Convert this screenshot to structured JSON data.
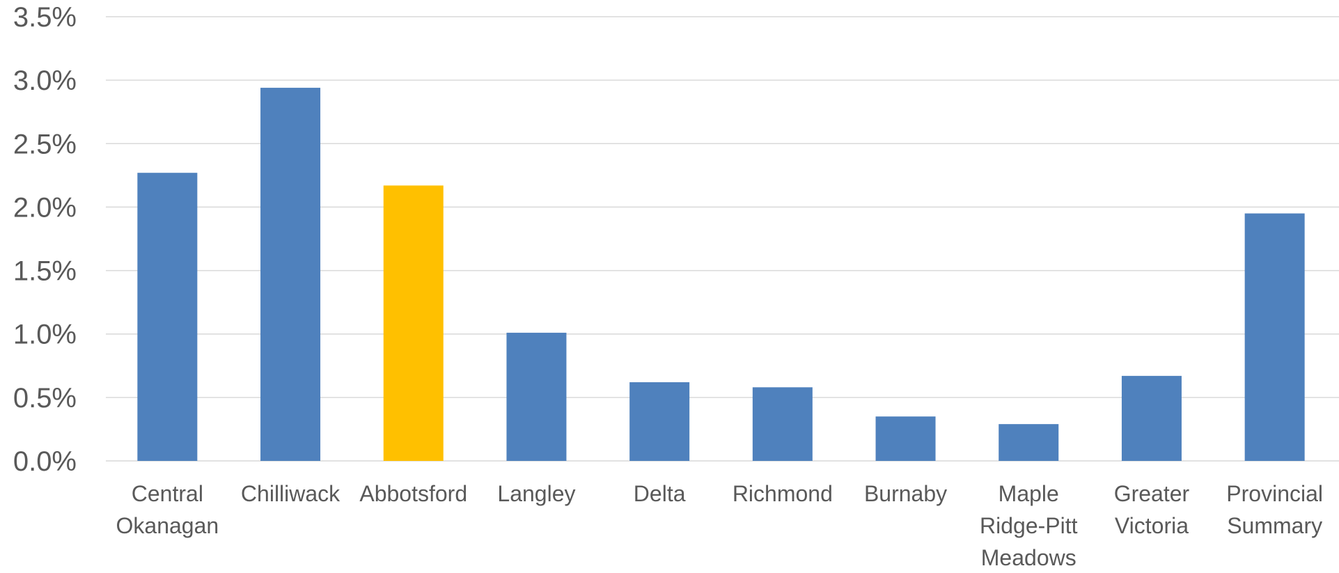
{
  "chart_data": {
    "type": "bar",
    "title": "",
    "xlabel": "",
    "ylabel": "",
    "ylim": [
      0,
      0.035
    ],
    "y_ticks": [
      "0.0%",
      "0.5%",
      "1.0%",
      "1.5%",
      "2.0%",
      "2.5%",
      "3.0%",
      "3.5%"
    ],
    "y_tick_values": [
      0,
      0.005,
      0.01,
      0.015,
      0.02,
      0.025,
      0.03,
      0.035
    ],
    "categories": [
      "Central Okanagan",
      "Chilliwack",
      "Abbotsford",
      "Langley",
      "Delta",
      "Richmond",
      "Burnaby",
      "Maple Ridge-Pitt Meadows",
      "Greater Victoria",
      "Provincial Summary"
    ],
    "category_label_lines": [
      [
        "Central",
        "Okanagan"
      ],
      [
        "Chilliwack"
      ],
      [
        "Abbotsford"
      ],
      [
        "Langley"
      ],
      [
        "Delta"
      ],
      [
        "Richmond"
      ],
      [
        "Burnaby"
      ],
      [
        "Maple",
        "Ridge-Pitt",
        "Meadows"
      ],
      [
        "Greater",
        "Victoria"
      ],
      [
        "Provincial",
        "Summary"
      ]
    ],
    "values": [
      0.0227,
      0.0294,
      0.0217,
      0.0101,
      0.0062,
      0.0058,
      0.0035,
      0.0029,
      0.0067,
      0.0195
    ],
    "colors": {
      "default": "#4f81bd",
      "highlight": "#ffc000"
    },
    "highlight_category": "Abbotsford",
    "grid": true,
    "legend": "none"
  }
}
